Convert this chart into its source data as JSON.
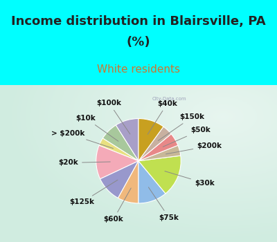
{
  "title_line1": "Income distribution in Blairsville, PA",
  "title_line2": "(%)",
  "subtitle": "White residents",
  "bg_cyan": "#00FFFF",
  "bg_chart": "#c8edd8",
  "labels": [
    "$100k",
    "$10k",
    "> $200k",
    "$20k",
    "$125k",
    "$60k",
    "$75k",
    "$30k",
    "$200k",
    "$50k",
    "$150k",
    "$40k"
  ],
  "values": [
    9,
    7,
    3,
    13,
    10,
    8,
    11,
    16,
    4,
    5,
    4,
    10
  ],
  "colors": [
    "#a89fc8",
    "#a8c89c",
    "#e8e080",
    "#f4aab8",
    "#9898cc",
    "#f0b87c",
    "#90bce8",
    "#c0e050",
    "#c8b898",
    "#e88888",
    "#c8b0a0",
    "#c8a020"
  ],
  "title_fontsize": 13,
  "subtitle_fontsize": 11,
  "title_color": "#222222",
  "subtitle_color": "#cc7730",
  "label_fontsize": 7.5
}
